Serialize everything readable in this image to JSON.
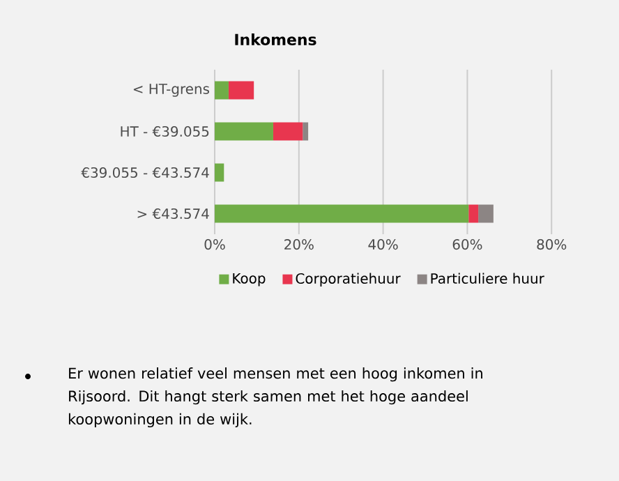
{
  "chart_data": {
    "type": "bar",
    "orientation": "horizontal",
    "stacked": true,
    "title": "Inkomens",
    "categories": [
      "< HT-grens",
      "HT - €39.055",
      "€39.055 - €43.574",
      "> €43.574"
    ],
    "series": [
      {
        "name": "Koop",
        "color": "#70ad47",
        "values": [
          3.3,
          13.9,
          2.2,
          60.3
        ]
      },
      {
        "name": "Corporatiehuur",
        "color": "#e8364f",
        "values": [
          6.0,
          7.0,
          null,
          2.3
        ]
      },
      {
        "name": "Particuliere huur",
        "color": "#8c8584",
        "values": [
          null,
          1.3,
          null,
          3.6
        ]
      }
    ],
    "xlim": [
      0,
      80
    ],
    "xticks": [
      {
        "value": 0,
        "label": "0%"
      },
      {
        "value": 20,
        "label": "20%"
      },
      {
        "value": 40,
        "label": "40%"
      },
      {
        "value": 60,
        "label": "60%"
      },
      {
        "value": 80,
        "label": "80%"
      }
    ],
    "grid": "x",
    "legend": "bottom",
    "annotations": [
      "Er wonen relatief veel mensen met een hoog inkomen in Rijsoord. Dit hangt sterk samen met het hoge aandeel koopwoningen in de wijk."
    ]
  }
}
